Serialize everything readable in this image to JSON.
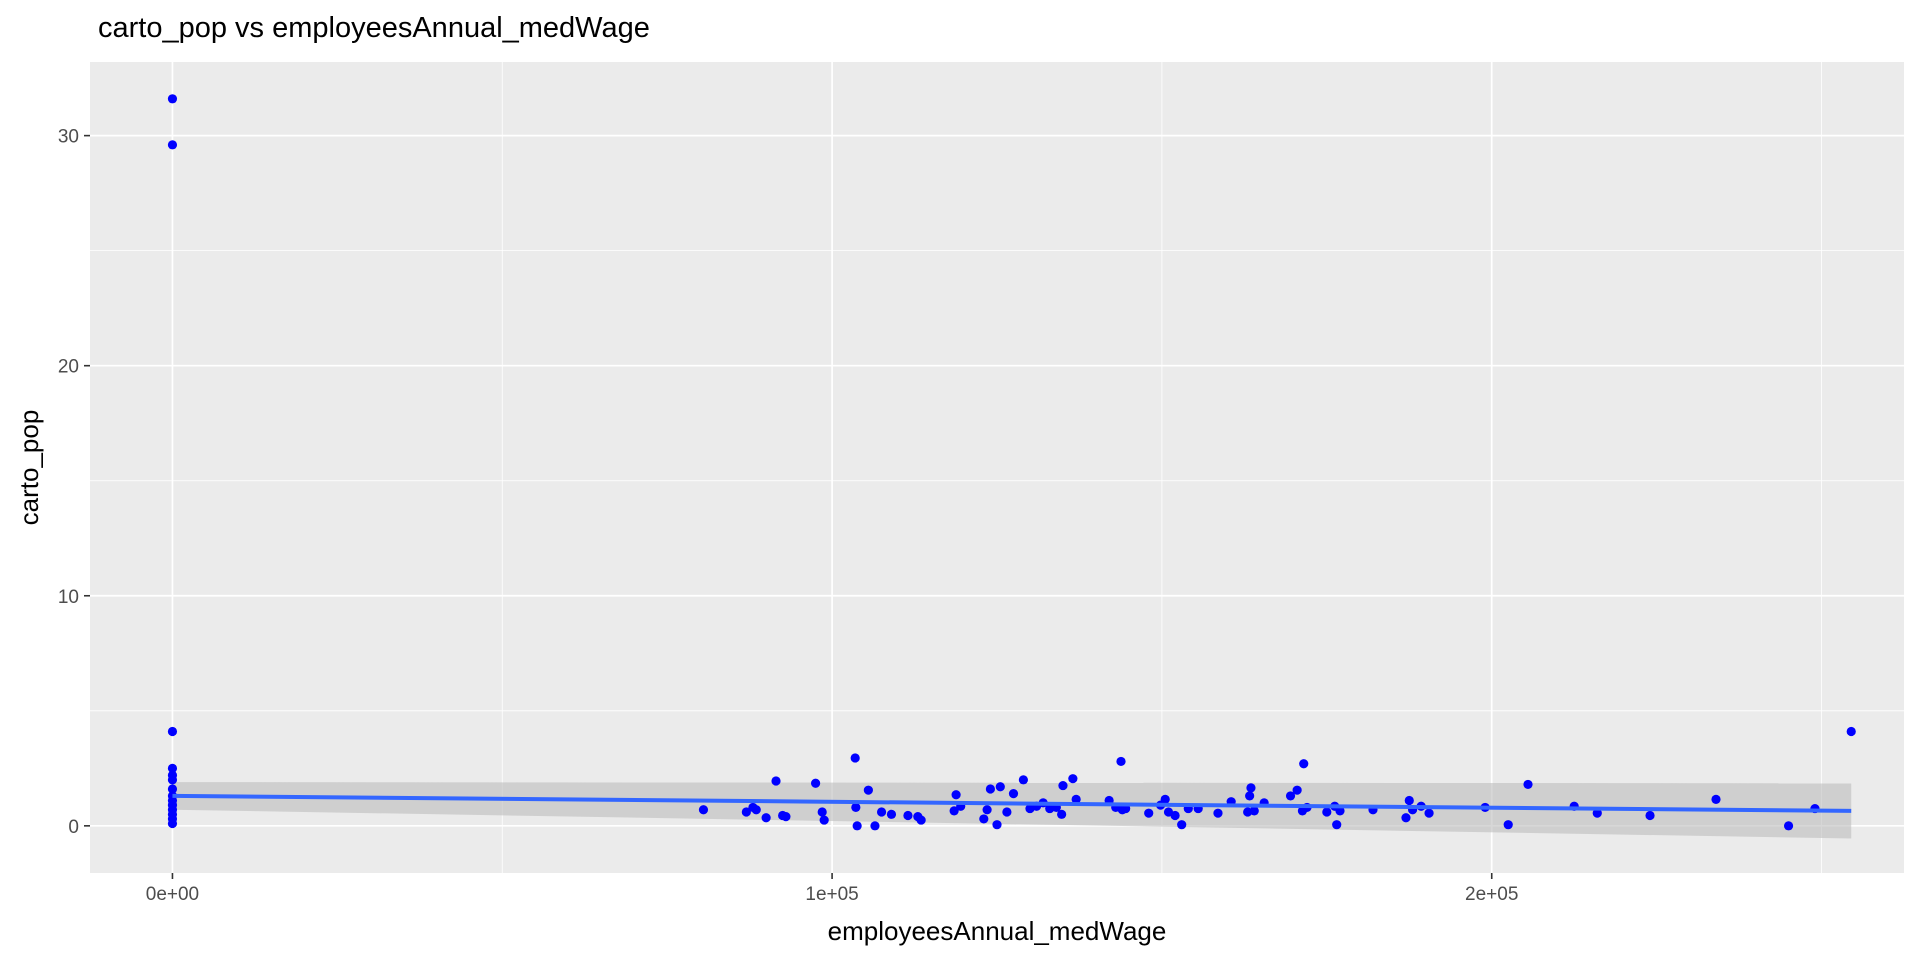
{
  "chart_data": {
    "type": "scatter",
    "title": "carto_pop vs employeesAnnual_medWage",
    "xlabel": "employeesAnnual_medWage",
    "ylabel": "carto_pop",
    "xlim": [
      -12500,
      262500
    ],
    "ylim": [
      -2.05,
      33.2
    ],
    "x_ticks": [
      0,
      100000,
      200000
    ],
    "x_tick_labels": [
      "0e+00",
      "1e+05",
      "2e+05"
    ],
    "y_ticks": [
      0,
      10,
      20,
      30
    ],
    "y_tick_labels": [
      "0",
      "10",
      "20",
      "30"
    ],
    "grid": true,
    "legend": "none",
    "colors": {
      "panel": "#ebebeb",
      "grid": "#ffffff",
      "points": "#0000ff",
      "smooth_line": "#3366ff",
      "confidence_band": "#bdbdbd"
    },
    "points": [
      [
        0,
        31.6
      ],
      [
        0,
        29.6
      ],
      [
        0,
        4.1
      ],
      [
        0,
        2.5
      ],
      [
        0,
        2.2
      ],
      [
        0,
        2.0
      ],
      [
        0,
        1.6
      ],
      [
        0,
        1.3
      ],
      [
        0,
        1.1
      ],
      [
        0,
        0.9
      ],
      [
        0,
        0.7
      ],
      [
        0,
        0.5
      ],
      [
        0,
        0.3
      ],
      [
        0,
        0.1
      ],
      [
        80500,
        0.7
      ],
      [
        87000,
        0.6
      ],
      [
        88000,
        0.8
      ],
      [
        88500,
        0.7
      ],
      [
        90000,
        0.35
      ],
      [
        91500,
        1.95
      ],
      [
        92500,
        0.45
      ],
      [
        93000,
        0.4
      ],
      [
        97500,
        1.85
      ],
      [
        98500,
        0.6
      ],
      [
        98800,
        0.25
      ],
      [
        103500,
        2.95
      ],
      [
        103600,
        0.8
      ],
      [
        103800,
        0.0
      ],
      [
        105500,
        1.55
      ],
      [
        106500,
        0.0
      ],
      [
        107500,
        0.6
      ],
      [
        109000,
        0.5
      ],
      [
        111500,
        0.45
      ],
      [
        113000,
        0.4
      ],
      [
        113500,
        0.25
      ],
      [
        118500,
        0.65
      ],
      [
        118800,
        1.35
      ],
      [
        119500,
        0.85
      ],
      [
        123000,
        0.3
      ],
      [
        123500,
        0.7
      ],
      [
        124000,
        1.6
      ],
      [
        125000,
        0.05
      ],
      [
        125500,
        1.7
      ],
      [
        126500,
        0.6
      ],
      [
        127500,
        1.4
      ],
      [
        129000,
        2.0
      ],
      [
        130000,
        0.75
      ],
      [
        131000,
        0.85
      ],
      [
        132000,
        1.0
      ],
      [
        133000,
        0.75
      ],
      [
        134000,
        0.8
      ],
      [
        134800,
        0.5
      ],
      [
        135000,
        1.75
      ],
      [
        136500,
        2.05
      ],
      [
        137000,
        1.15
      ],
      [
        142000,
        1.1
      ],
      [
        143000,
        0.8
      ],
      [
        143800,
        2.8
      ],
      [
        144000,
        0.7
      ],
      [
        144500,
        0.75
      ],
      [
        148000,
        0.55
      ],
      [
        149800,
        0.9
      ],
      [
        150500,
        1.15
      ],
      [
        151000,
        0.6
      ],
      [
        152000,
        0.45
      ],
      [
        153000,
        0.05
      ],
      [
        154000,
        0.75
      ],
      [
        155500,
        0.75
      ],
      [
        158500,
        0.55
      ],
      [
        160500,
        1.05
      ],
      [
        163000,
        0.6
      ],
      [
        163300,
        1.3
      ],
      [
        163500,
        1.65
      ],
      [
        164000,
        0.65
      ],
      [
        165500,
        1.0
      ],
      [
        169500,
        1.3
      ],
      [
        170500,
        1.55
      ],
      [
        171300,
        0.65
      ],
      [
        171500,
        2.7
      ],
      [
        172000,
        0.8
      ],
      [
        175000,
        0.6
      ],
      [
        176200,
        0.85
      ],
      [
        176500,
        0.05
      ],
      [
        177000,
        0.65
      ],
      [
        182000,
        0.7
      ],
      [
        187000,
        0.35
      ],
      [
        187500,
        1.1
      ],
      [
        188000,
        0.7
      ],
      [
        189300,
        0.85
      ],
      [
        190500,
        0.55
      ],
      [
        199000,
        0.8
      ],
      [
        202500,
        0.05
      ],
      [
        205500,
        1.8
      ],
      [
        212500,
        0.85
      ],
      [
        216000,
        0.55
      ],
      [
        224000,
        0.45
      ],
      [
        234000,
        1.15
      ],
      [
        245000,
        0.0
      ],
      [
        249000,
        0.75
      ],
      [
        254500,
        4.1
      ]
    ],
    "smooth": {
      "method": "linear",
      "x": [
        0,
        254500
      ],
      "y": [
        1.3,
        0.65
      ],
      "band_lower": [
        0.7,
        -0.55
      ],
      "band_upper": [
        1.9,
        1.85
      ]
    }
  }
}
